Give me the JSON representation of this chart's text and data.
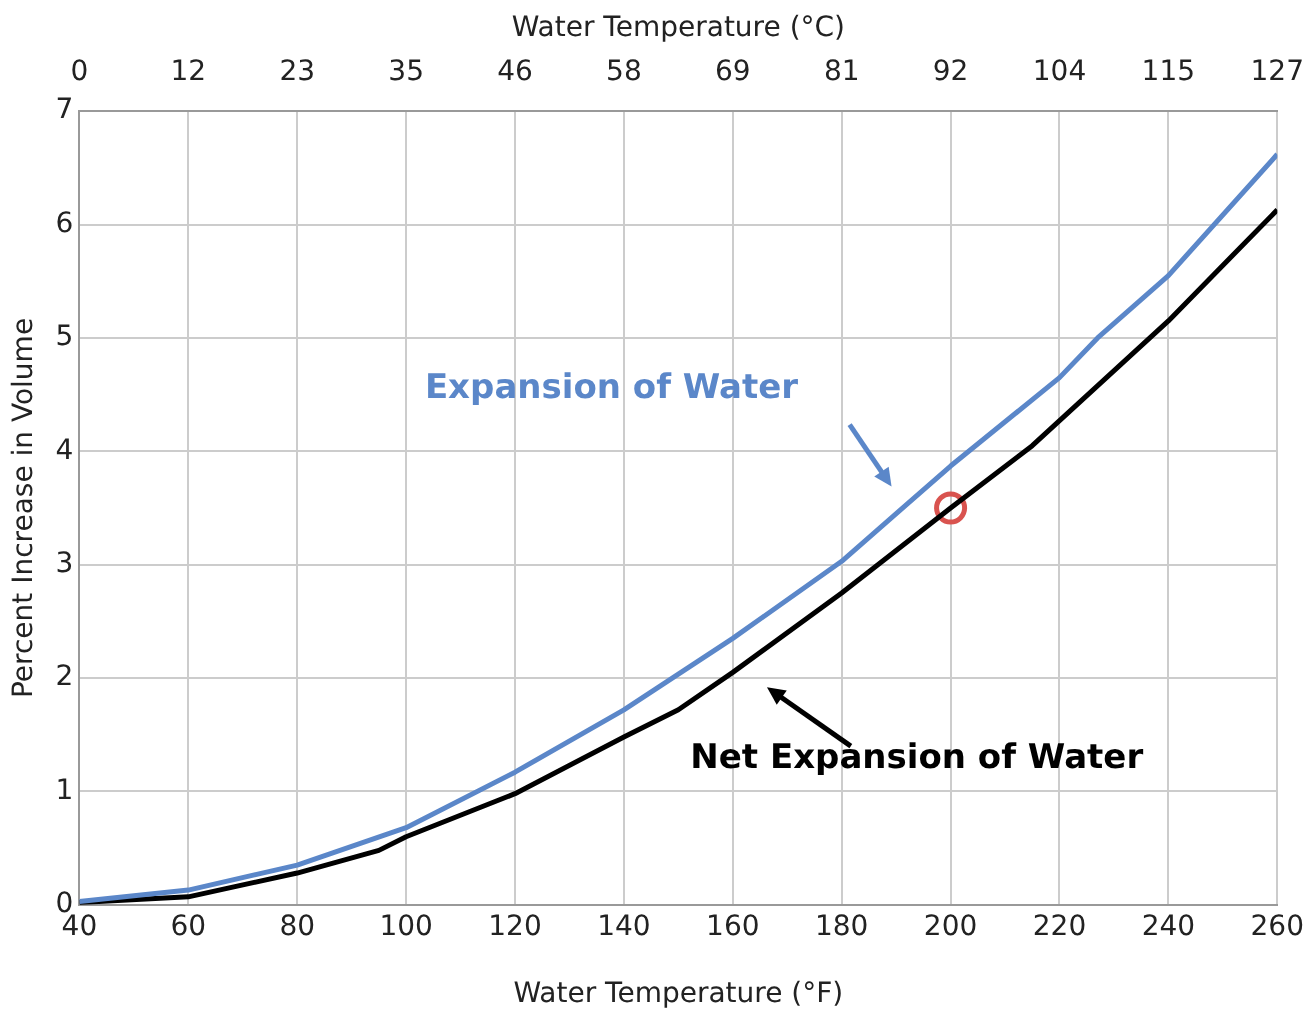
{
  "chart_data": {
    "type": "line",
    "xlabel": "Water Temperature (°F)",
    "ylabel": "Percent Increase in Volume",
    "x2label": "Water Temperature (°C)",
    "xlim": [
      40,
      260
    ],
    "xticks": [
      40,
      60,
      80,
      100,
      120,
      140,
      160,
      180,
      200,
      220,
      240,
      260
    ],
    "x2lim": [
      0,
      127
    ],
    "x2ticks": [
      0,
      {
        "value": 11.55,
        "label": "12"
      },
      {
        "value": 23.09,
        "label": "23"
      },
      {
        "value": 34.64,
        "label": "35"
      },
      {
        "value": 46.18,
        "label": "46"
      },
      {
        "value": 57.73,
        "label": "58"
      },
      {
        "value": 69.27,
        "label": "69"
      },
      {
        "value": 80.82,
        "label": "81"
      },
      {
        "value": 92.36,
        "label": "92"
      },
      {
        "value": 103.91,
        "label": "104"
      },
      {
        "value": 115.45,
        "label": "115"
      },
      127
    ],
    "ylim": [
      0,
      7
    ],
    "yticks": [
      0,
      1,
      2,
      3,
      4,
      5,
      6,
      7
    ],
    "grid": true,
    "legend": false,
    "marker": "none",
    "line_style": "solid",
    "series": [
      {
        "color": "#5b87c9",
        "x": [
          40,
          60,
          80,
          100,
          120,
          140,
          160,
          180,
          200,
          220,
          227,
          240,
          260
        ],
        "values": [
          0.03,
          0.13,
          0.35,
          0.68,
          1.17,
          1.72,
          2.35,
          3.03,
          3.87,
          4.65,
          5.0,
          5.55,
          6.62
        ]
      },
      {
        "color": "#000000",
        "x": [
          40,
          60,
          80,
          95,
          100,
          120,
          140,
          150,
          160,
          180,
          200,
          215,
          240,
          260
        ],
        "values": [
          0.02,
          0.07,
          0.28,
          0.48,
          0.6,
          0.98,
          1.48,
          1.72,
          2.05,
          2.75,
          3.5,
          4.05,
          5.15,
          6.13
        ]
      },
      {
        "type": "scatter",
        "color": "#d9534f",
        "marker": "circle",
        "x": [
          200
        ],
        "values": [
          3.5
        ]
      }
    ],
    "annotations": [
      "Expansion of Water",
      "Net Expansion of Water"
    ]
  }
}
